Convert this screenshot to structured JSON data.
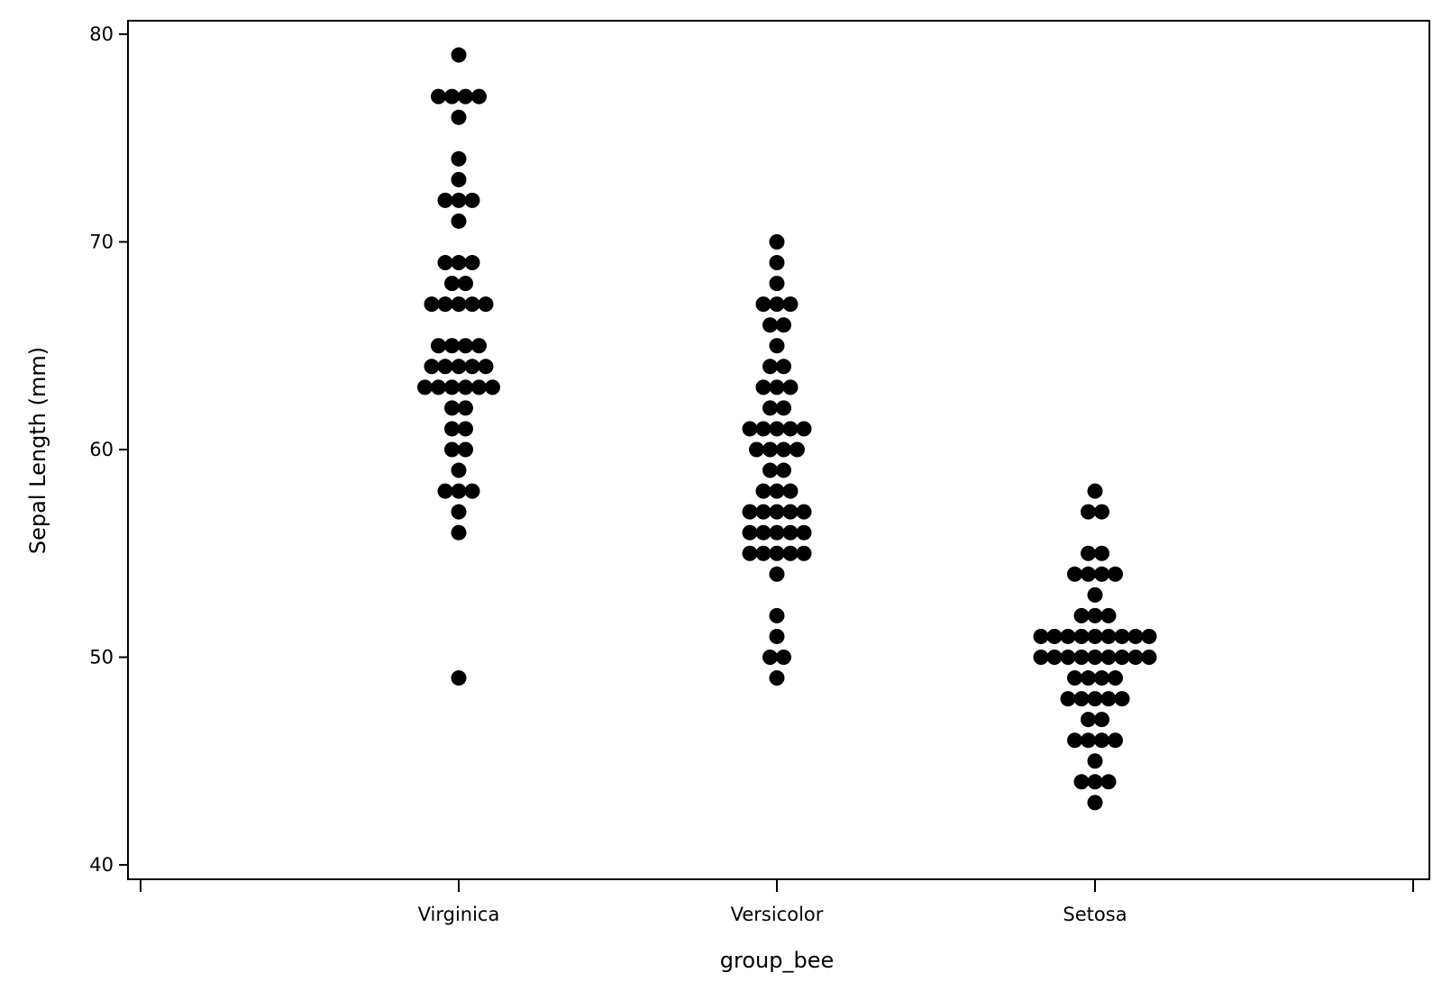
{
  "chart_data": {
    "type": "scatter",
    "subtype": "beeswarm",
    "title": "",
    "xlabel": "group_bee",
    "ylabel": "Sepal Length (mm)",
    "categories": [
      "Virginica",
      "Versicolor",
      "Setosa"
    ],
    "ylim": [
      39.3,
      80.7
    ],
    "yticks": [
      40,
      50,
      60,
      70,
      80
    ],
    "grid": false,
    "legend": "none",
    "marker_color": "#000000",
    "groups": [
      {
        "category": "Virginica",
        "values": [
          79,
          77,
          77,
          77,
          77,
          76,
          74,
          73,
          72,
          72,
          72,
          71,
          69,
          69,
          69,
          68,
          68,
          67,
          67,
          67,
          67,
          67,
          65,
          65,
          65,
          65,
          64,
          64,
          64,
          64,
          64,
          63,
          63,
          63,
          63,
          63,
          63,
          62,
          62,
          61,
          61,
          60,
          60,
          59,
          58,
          58,
          58,
          57,
          56,
          49
        ]
      },
      {
        "category": "Versicolor",
        "values": [
          70,
          69,
          68,
          67,
          67,
          67,
          66,
          66,
          65,
          64,
          64,
          63,
          63,
          63,
          62,
          62,
          61,
          61,
          61,
          61,
          61,
          60,
          60,
          60,
          60,
          59,
          59,
          58,
          58,
          58,
          57,
          57,
          57,
          57,
          57,
          56,
          56,
          56,
          56,
          56,
          55,
          55,
          55,
          55,
          55,
          54,
          52,
          51,
          50,
          50,
          49
        ]
      },
      {
        "category": "Setosa",
        "values": [
          58,
          57,
          57,
          55,
          55,
          54,
          54,
          54,
          54,
          53,
          52,
          52,
          52,
          51,
          51,
          51,
          51,
          51,
          51,
          51,
          51,
          51,
          50,
          50,
          50,
          50,
          50,
          50,
          50,
          50,
          50,
          49,
          49,
          49,
          49,
          48,
          48,
          48,
          48,
          48,
          47,
          47,
          46,
          46,
          46,
          46,
          45,
          44,
          44,
          44,
          43
        ]
      }
    ]
  }
}
